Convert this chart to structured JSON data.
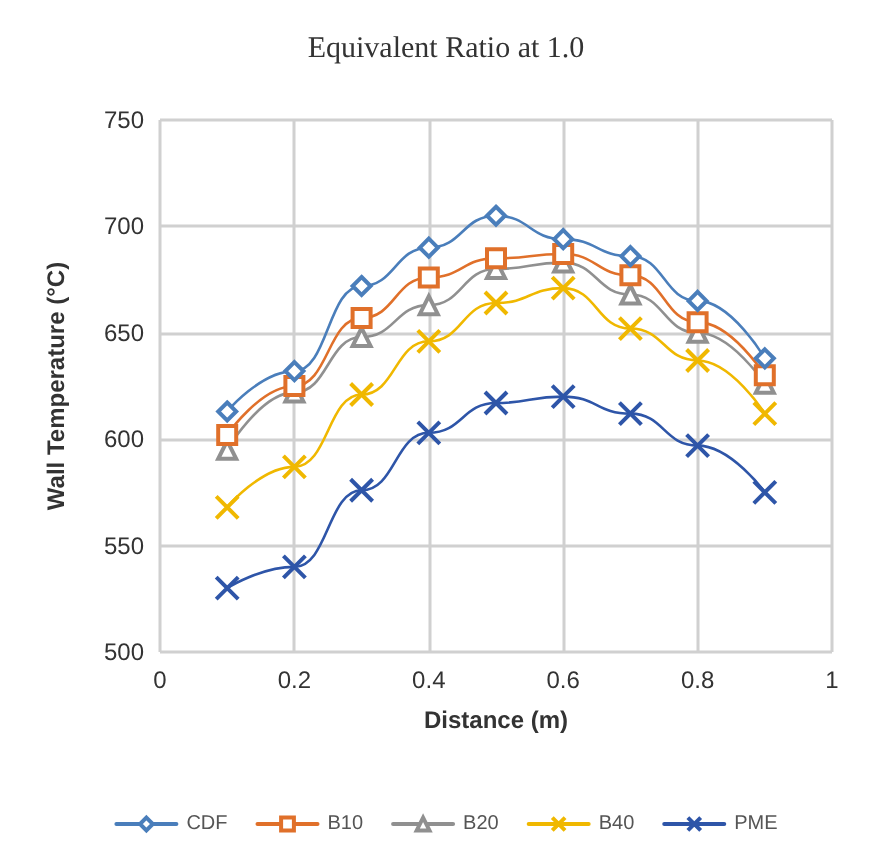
{
  "chart_data": {
    "type": "line",
    "title": "Equivalent Ratio at 1.0",
    "xlabel": "Distance (m)",
    "ylabel": "Wall Temperature (°C)",
    "x": [
      0.1,
      0.2,
      0.3,
      0.4,
      0.5,
      0.6,
      0.7,
      0.8,
      0.9
    ],
    "series": [
      {
        "name": "CDF",
        "color": "#4a7ebb",
        "marker": "diamond",
        "values": [
          613,
          632,
          672,
          690,
          705,
          694,
          686,
          665,
          638
        ]
      },
      {
        "name": "B10",
        "color": "#e0702a",
        "marker": "square",
        "values": [
          602,
          625,
          657,
          676,
          685,
          687,
          677,
          655,
          630
        ]
      },
      {
        "name": "B20",
        "color": "#909090",
        "marker": "triangle",
        "values": [
          595,
          622,
          648,
          663,
          680,
          683,
          668,
          650,
          626
        ]
      },
      {
        "name": "B40",
        "color": "#f0b800",
        "marker": "cross",
        "values": [
          568,
          587,
          621,
          646,
          664,
          671,
          652,
          637,
          612
        ]
      },
      {
        "name": "PME",
        "color": "#2e55a8",
        "marker": "cross",
        "values": [
          530,
          540,
          576,
          603,
          617,
          620,
          612,
          597,
          575
        ]
      }
    ],
    "xlim": [
      0,
      1
    ],
    "xticks": [
      0,
      0.2,
      0.4,
      0.6,
      0.8,
      1
    ],
    "ylim": [
      500,
      750
    ],
    "yticks": [
      500,
      550,
      600,
      650,
      700,
      750
    ],
    "grid": true,
    "legend": "bottom",
    "line_style": "solid"
  }
}
